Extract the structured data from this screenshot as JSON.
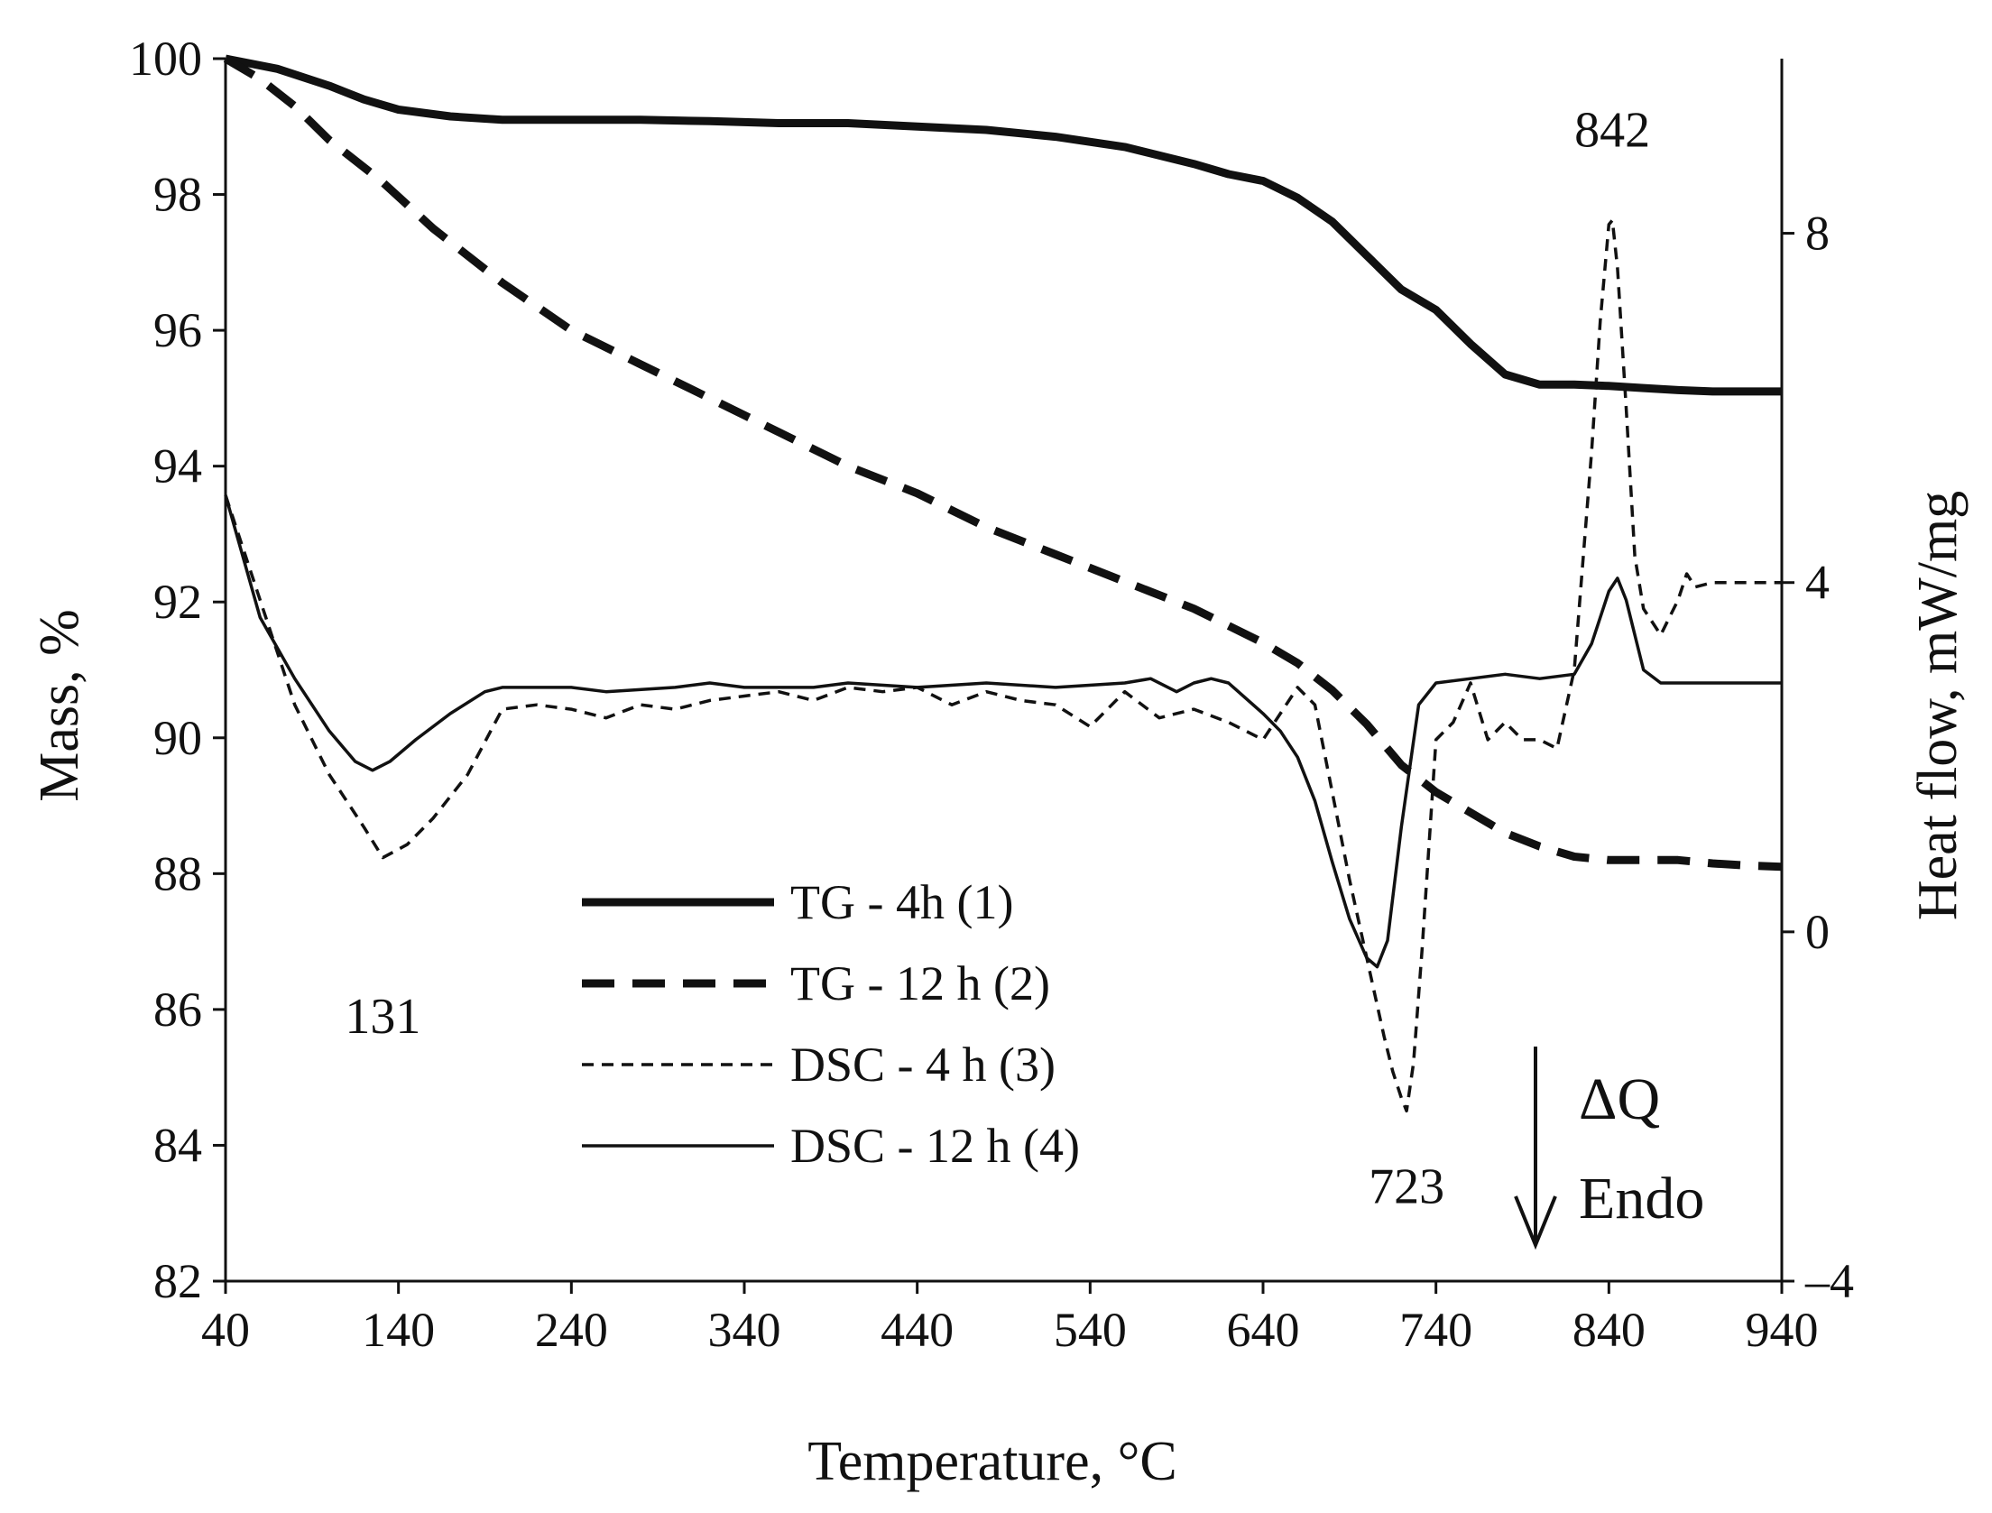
{
  "chart_data": {
    "type": "line",
    "xlabel": "Temperature, °C",
    "ylabel_left": "Mass, %",
    "ylabel_right": "Heat flow, mW/mg",
    "xlim": [
      40,
      940
    ],
    "ylim_left": [
      82,
      100
    ],
    "ylim_right": [
      -4,
      10
    ],
    "x_ticks": [
      40,
      140,
      240,
      340,
      440,
      540,
      640,
      740,
      840,
      940
    ],
    "y_left_ticks": [
      82,
      84,
      86,
      88,
      90,
      92,
      94,
      96,
      98,
      100
    ],
    "y_right_ticks": [
      {
        "value": -4,
        "label": "–4"
      },
      {
        "value": 0,
        "label": "0"
      },
      {
        "value": 4,
        "label": "4"
      },
      {
        "value": 8,
        "label": "8"
      }
    ],
    "grid": false,
    "legend_position": "center-bottom",
    "series": [
      {
        "name": "TG - 4h (1)",
        "axis": "left",
        "style": "thick-solid",
        "x": [
          40,
          70,
          100,
          120,
          140,
          170,
          200,
          240,
          280,
          320,
          360,
          400,
          440,
          480,
          520,
          560,
          600,
          620,
          640,
          660,
          680,
          700,
          720,
          740,
          760,
          780,
          800,
          820,
          840,
          860,
          880,
          900,
          920,
          940
        ],
        "y": [
          100,
          99.85,
          99.6,
          99.4,
          99.25,
          99.15,
          99.1,
          99.1,
          99.1,
          99.08,
          99.05,
          99.05,
          99.0,
          98.95,
          98.85,
          98.7,
          98.45,
          98.3,
          98.2,
          97.95,
          97.6,
          97.1,
          96.6,
          96.3,
          95.8,
          95.35,
          95.2,
          95.2,
          95.18,
          95.15,
          95.12,
          95.1,
          95.1,
          95.1
        ]
      },
      {
        "name": "TG - 12 h (2)",
        "axis": "left",
        "style": "thick-dashed",
        "x": [
          40,
          60,
          80,
          100,
          130,
          160,
          200,
          240,
          280,
          320,
          360,
          400,
          440,
          480,
          520,
          560,
          600,
          640,
          660,
          680,
          700,
          720,
          740,
          760,
          780,
          800,
          820,
          840,
          860,
          880,
          900,
          920,
          940
        ],
        "y": [
          100,
          99.7,
          99.3,
          98.8,
          98.2,
          97.5,
          96.7,
          96.0,
          95.5,
          95.0,
          94.5,
          94.0,
          93.6,
          93.1,
          92.7,
          92.3,
          91.9,
          91.4,
          91.1,
          90.7,
          90.2,
          89.6,
          89.2,
          88.9,
          88.6,
          88.4,
          88.25,
          88.2,
          88.2,
          88.2,
          88.15,
          88.12,
          88.1
        ]
      },
      {
        "name": "DSC - 4 h (3)",
        "axis": "right",
        "style": "thin-dashed",
        "x": [
          40,
          60,
          80,
          100,
          120,
          131,
          145,
          160,
          180,
          200,
          220,
          240,
          260,
          280,
          300,
          320,
          340,
          360,
          380,
          400,
          420,
          440,
          460,
          480,
          500,
          520,
          540,
          560,
          580,
          600,
          620,
          640,
          650,
          660,
          670,
          680,
          690,
          700,
          710,
          715,
          720,
          723,
          727,
          732,
          740,
          750,
          760,
          770,
          780,
          790,
          800,
          810,
          820,
          830,
          835,
          840,
          842,
          845,
          850,
          855,
          860,
          870,
          880,
          885,
          890,
          900,
          910,
          920,
          940
        ],
        "y": [
          5.0,
          3.8,
          2.6,
          1.8,
          1.2,
          0.85,
          1.0,
          1.3,
          1.8,
          2.55,
          2.6,
          2.55,
          2.45,
          2.6,
          2.55,
          2.65,
          2.7,
          2.75,
          2.65,
          2.8,
          2.75,
          2.8,
          2.6,
          2.75,
          2.65,
          2.6,
          2.35,
          2.75,
          2.45,
          2.55,
          2.4,
          2.2,
          2.5,
          2.8,
          2.6,
          1.6,
          0.6,
          -0.3,
          -1.2,
          -1.6,
          -1.9,
          -2.05,
          -1.5,
          -0.2,
          2.2,
          2.4,
          2.85,
          2.2,
          2.4,
          2.2,
          2.2,
          2.1,
          3.0,
          5.5,
          7.0,
          8.1,
          8.15,
          7.6,
          6.0,
          4.3,
          3.7,
          3.4,
          3.8,
          4.1,
          3.95,
          4.0,
          4.0,
          4.0,
          4.0
        ]
      },
      {
        "name": "DSC - 12 h (4)",
        "axis": "right",
        "style": "thin-solid",
        "x": [
          40,
          60,
          80,
          100,
          115,
          125,
          135,
          150,
          170,
          190,
          200,
          240,
          260,
          300,
          320,
          340,
          380,
          400,
          440,
          480,
          520,
          560,
          575,
          590,
          600,
          610,
          620,
          640,
          650,
          660,
          670,
          680,
          690,
          700,
          706,
          712,
          720,
          730,
          740,
          760,
          780,
          800,
          820,
          830,
          840,
          845,
          850,
          860,
          870,
          890,
          940
        ],
        "y": [
          5.0,
          3.6,
          2.9,
          2.3,
          1.95,
          1.85,
          1.95,
          2.2,
          2.5,
          2.75,
          2.8,
          2.8,
          2.75,
          2.8,
          2.85,
          2.8,
          2.8,
          2.85,
          2.8,
          2.85,
          2.8,
          2.85,
          2.9,
          2.75,
          2.85,
          2.9,
          2.85,
          2.5,
          2.3,
          2.0,
          1.5,
          0.8,
          0.15,
          -0.3,
          -0.4,
          -0.1,
          1.2,
          2.6,
          2.85,
          2.9,
          2.95,
          2.9,
          2.95,
          3.3,
          3.9,
          4.05,
          3.8,
          3.0,
          2.85,
          2.85,
          2.85
        ]
      }
    ],
    "annotations": [
      {
        "text": "131",
        "x": 131,
        "y": -0.95,
        "axis": "right"
      },
      {
        "text": "723",
        "x": 723,
        "y": -2.9,
        "axis": "right"
      },
      {
        "text": "842",
        "x": 842,
        "y": 9.2,
        "axis": "right"
      }
    ],
    "endo_label": {
      "symbol": "ΔQ",
      "text": "Endo"
    }
  }
}
